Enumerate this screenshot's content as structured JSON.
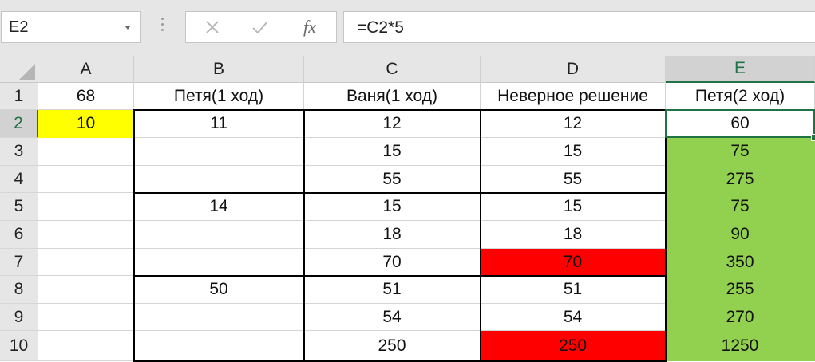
{
  "namebox": "E2",
  "formula": "=C2*5",
  "toolbar": {
    "fx_label": "fx"
  },
  "columns": [
    "A",
    "B",
    "C",
    "D",
    "E"
  ],
  "rows": [
    "1",
    "2",
    "3",
    "4",
    "5",
    "6",
    "7",
    "8",
    "9",
    "10"
  ],
  "selected_cell": {
    "col": "E",
    "row": "2"
  },
  "colors": {
    "yellow": "#ffff00",
    "red": "#ff0000",
    "green": "#92d050",
    "selection": "#217346"
  },
  "cells": [
    [
      "68",
      "Петя(1 ход)",
      "Ваня(1 ход)",
      "Неверное решение",
      "Петя(2 ход)"
    ],
    [
      "10",
      "11",
      "12",
      "12",
      "60"
    ],
    [
      "",
      "",
      "15",
      "15",
      "75"
    ],
    [
      "",
      "",
      "55",
      "55",
      "275"
    ],
    [
      "",
      "14",
      "15",
      "15",
      "75"
    ],
    [
      "",
      "",
      "18",
      "18",
      "90"
    ],
    [
      "",
      "",
      "70",
      "70",
      "350"
    ],
    [
      "",
      "50",
      "51",
      "51",
      "255"
    ],
    [
      "",
      "",
      "54",
      "54",
      "270"
    ],
    [
      "",
      "",
      "250",
      "250",
      "1250"
    ]
  ],
  "fills": {
    "A2": "yellow",
    "D7": "red",
    "D10": "red",
    "E3": "green",
    "E4": "green",
    "E5": "green",
    "E6": "green",
    "E7": "green",
    "E8": "green",
    "E9": "green",
    "E10": "green"
  }
}
